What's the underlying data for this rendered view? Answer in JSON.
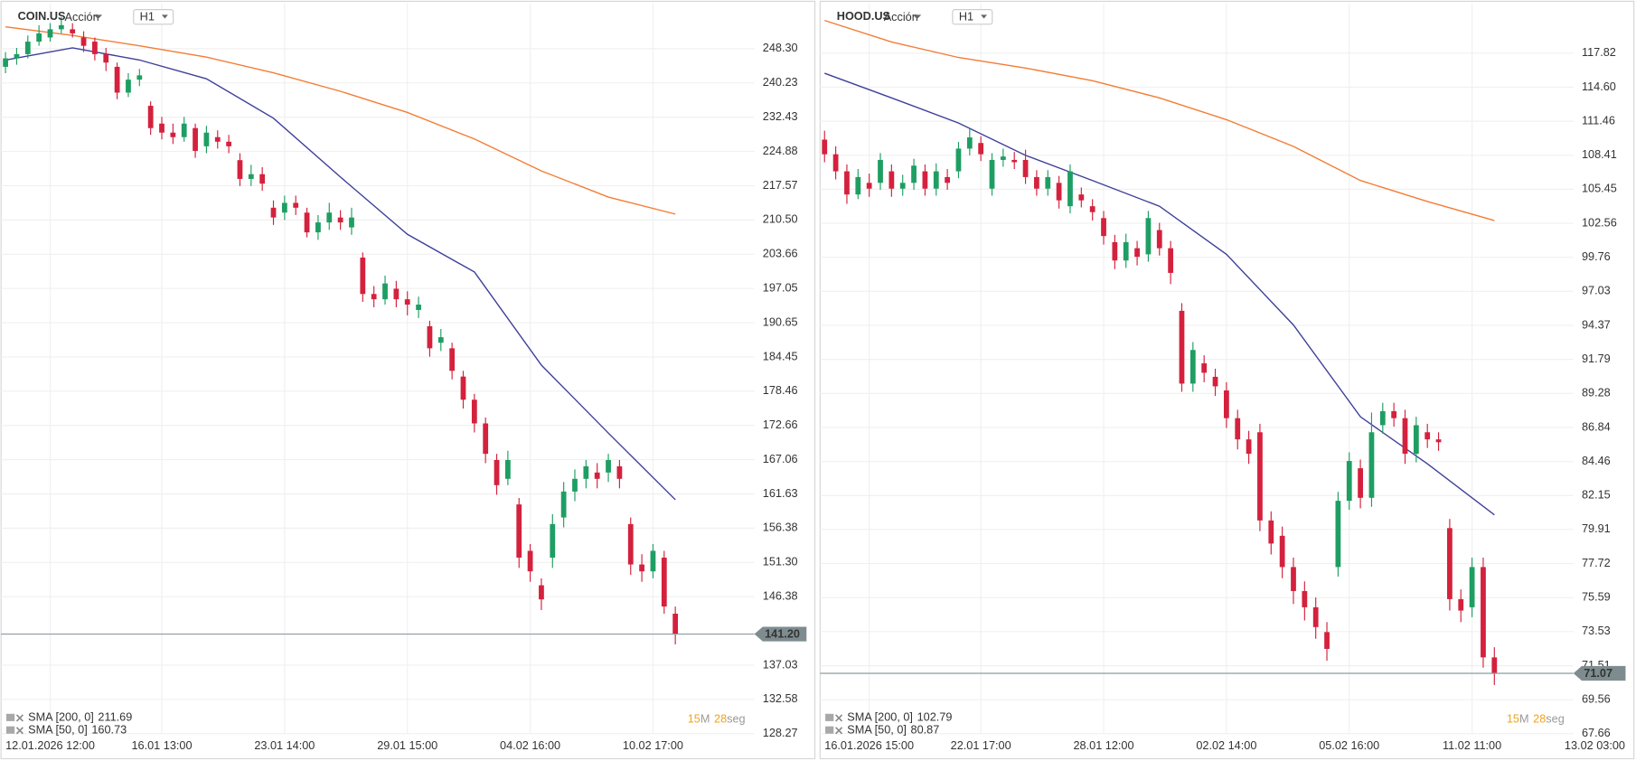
{
  "chart_data": [
    {
      "type": "candlestick",
      "symbol": "COIN.US",
      "asset_type": "Acción",
      "timeframe": "H1",
      "x": [
        0,
        1,
        2,
        3,
        4,
        5,
        6,
        7,
        8,
        9,
        10,
        11,
        12,
        13,
        14,
        15,
        16,
        17,
        18,
        19,
        20,
        21,
        22,
        23,
        24,
        25,
        26,
        27,
        28,
        29,
        30,
        31,
        32,
        33,
        34,
        35,
        36,
        37,
        38,
        39,
        40,
        41,
        42,
        43,
        44,
        45,
        46,
        47,
        48,
        49,
        50,
        51,
        52,
        53,
        54,
        55,
        56,
        57,
        58,
        59,
        60
      ],
      "xlim": [
        -0.4,
        72.5
      ],
      "xticks": [
        {
          "value": 4,
          "label": "12.01.2026 12:00"
        },
        {
          "value": 14,
          "label": "16.01 13:00"
        },
        {
          "value": 25,
          "label": "23.01 14:00"
        },
        {
          "value": 36,
          "label": "29.01 15:00"
        },
        {
          "value": 47,
          "label": "04.02 16:00"
        },
        {
          "value": 58,
          "label": "10.02 17:00"
        }
      ],
      "ylim": [
        128.27,
        259.4
      ],
      "log_scale": true,
      "grid": true,
      "yticks": [
        {
          "value": 248.3,
          "label": "248.30"
        },
        240.23,
        232.43,
        224.88,
        217.57,
        {
          "value": 210.5,
          "label": "210.50"
        },
        203.66,
        197.05,
        190.65,
        184.45,
        178.46,
        172.66,
        167.06,
        161.63,
        156.38,
        {
          "value": 151.3,
          "label": "151.30"
        },
        146.38,
        137.03,
        132.58,
        128.27
      ],
      "open": [
        244,
        246,
        247,
        250,
        251,
        253,
        253,
        251,
        250,
        247,
        244,
        238,
        241,
        235,
        231,
        229,
        228,
        230,
        226,
        228,
        227,
        223,
        219,
        220,
        213,
        212,
        214,
        212,
        208,
        210,
        211,
        209,
        203,
        196,
        195,
        197,
        195,
        193,
        190,
        187,
        186,
        181,
        177,
        173,
        167,
        164,
        160,
        153,
        148,
        152,
        158,
        162,
        164,
        165,
        165,
        166,
        157,
        151,
        150,
        152,
        144
      ],
      "high": [
        247.5,
        248.5,
        251.5,
        254,
        254.5,
        256,
        254.5,
        252.5,
        251,
        248.5,
        245,
        242.5,
        243.5,
        236,
        232.5,
        231,
        232.5,
        231,
        230.5,
        229.5,
        228.5,
        224.5,
        222,
        221.5,
        214.5,
        215.5,
        215.5,
        213,
        211.5,
        214,
        212.5,
        213,
        204,
        197.5,
        199.5,
        198.5,
        196.5,
        195.5,
        191,
        189.5,
        187,
        182,
        178,
        174,
        168,
        168.5,
        161,
        154,
        149,
        158.5,
        163.5,
        165.5,
        167,
        166.5,
        168,
        167,
        158,
        152.5,
        154,
        153,
        145
      ],
      "low": [
        242.5,
        244.5,
        246,
        249,
        250,
        252,
        251,
        247.5,
        245.5,
        243,
        236.5,
        237,
        239.5,
        228.5,
        227.5,
        226.5,
        227,
        223.5,
        224.5,
        225.5,
        224.5,
        217.5,
        217.5,
        216.5,
        209.5,
        210.5,
        211.5,
        207,
        206.5,
        208.5,
        208.5,
        207.5,
        194.5,
        193.5,
        194,
        193.5,
        192,
        191.5,
        184.5,
        185.5,
        180.5,
        175.5,
        171.5,
        166.5,
        161.5,
        163,
        150.5,
        148.5,
        144.5,
        150.5,
        156.5,
        160.5,
        162.5,
        162.5,
        163.5,
        162.5,
        149.5,
        148.5,
        149,
        144,
        139.8
      ],
      "close": [
        246,
        247,
        250,
        252,
        253,
        254,
        252,
        249,
        247,
        245,
        238,
        241,
        242,
        230,
        229,
        228,
        231,
        225,
        229,
        227,
        226,
        219,
        220,
        218,
        211,
        214,
        213,
        208,
        210,
        212,
        210,
        211,
        196,
        195,
        198,
        195,
        194,
        194,
        186,
        188,
        182,
        177,
        173,
        168,
        163,
        167,
        152,
        150,
        146,
        157,
        162,
        164,
        166,
        164,
        167,
        164,
        151,
        150,
        153,
        145,
        141.2
      ],
      "up_color": "#1e9e63",
      "down_color": "#d4213d",
      "series": [
        {
          "name": "SMA [200, 0]",
          "color": "#f47c34",
          "last": 211.69,
          "x": [
            0,
            6,
            12,
            18,
            24,
            30,
            36,
            42,
            48,
            54,
            60
          ],
          "values": [
            253.6,
            251.5,
            249.0,
            246.3,
            242.6,
            238.3,
            233.5,
            227.6,
            220.7,
            215.2,
            211.69
          ]
        },
        {
          "name": "SMA [50, 0]",
          "color": "#3d3f99",
          "last": 160.73,
          "x": [
            0,
            6,
            12,
            18,
            24,
            30,
            36,
            42,
            48,
            54,
            60
          ],
          "values": [
            245.6,
            248.5,
            245.6,
            241.2,
            232.2,
            219.4,
            207.6,
            200.2,
            183.0,
            171.4,
            160.73
          ]
        }
      ],
      "last_price": {
        "value": 141.2,
        "label": "141.20"
      },
      "countdown": {
        "minutes": 15,
        "minutes_unit": "M",
        "seconds": 28,
        "seconds_unit": "seg"
      }
    },
    {
      "type": "candlestick",
      "symbol": "HOOD.US",
      "asset_type": "Acción",
      "timeframe": "H1",
      "x": [
        0,
        1,
        2,
        3,
        4,
        5,
        6,
        7,
        8,
        9,
        10,
        11,
        12,
        13,
        14,
        15,
        16,
        17,
        18,
        19,
        20,
        21,
        22,
        23,
        24,
        25,
        26,
        27,
        28,
        29,
        30,
        31,
        32,
        33,
        34,
        35,
        36,
        37,
        38,
        39,
        40,
        41,
        42,
        43,
        44,
        45,
        46,
        47,
        48,
        49,
        50,
        51,
        52,
        53,
        54,
        55,
        56,
        57,
        58,
        59,
        60
      ],
      "xlim": [
        -0.4,
        72.5
      ],
      "xticks": [
        {
          "value": 4,
          "label": "16.01.2026 15:00"
        },
        {
          "value": 14,
          "label": "22.01 17:00"
        },
        {
          "value": 25,
          "label": "28.01 12:00"
        },
        {
          "value": 36,
          "label": "02.02 14:00"
        },
        {
          "value": 47,
          "label": "05.02 16:00"
        },
        {
          "value": 58,
          "label": "11.02 11:00"
        },
        {
          "value": 69,
          "label": "13.02 03:00"
        }
      ],
      "ylim": [
        67.66,
        122.7
      ],
      "log_scale": true,
      "grid": true,
      "yticks": [
        117.82,
        {
          "value": 114.6,
          "label": "114.60"
        },
        111.46,
        108.41,
        105.45,
        102.56,
        99.76,
        97.03,
        94.37,
        91.79,
        89.28,
        86.84,
        84.46,
        82.15,
        79.91,
        77.72,
        75.59,
        73.53,
        71.51,
        69.56,
        67.66
      ],
      "open": [
        109.8,
        108.5,
        107,
        105,
        106,
        106,
        107,
        105.5,
        106,
        107,
        105.5,
        106.5,
        107,
        109,
        109.5,
        105.5,
        108,
        108,
        108,
        106.5,
        105.5,
        106,
        104,
        105,
        104,
        103,
        101,
        99.5,
        100.5,
        100,
        102,
        100.5,
        95.5,
        90,
        91.5,
        90.5,
        89.5,
        87.5,
        86,
        86.5,
        80.5,
        79.5,
        77.5,
        76,
        75,
        73.5,
        77.5,
        81.8,
        84,
        82,
        87,
        88,
        87.5,
        85,
        86.5,
        86,
        80,
        75.5,
        75,
        77.5,
        72
      ],
      "high": [
        110.6,
        109.2,
        107.6,
        107.2,
        106.8,
        108.6,
        107.6,
        106.7,
        108.1,
        107.6,
        107.7,
        107.2,
        109.6,
        110.8,
        110.1,
        108.6,
        109,
        108.7,
        108.9,
        107.1,
        107.1,
        106.6,
        107.6,
        105.6,
        104.6,
        103.6,
        101.6,
        101.7,
        101.1,
        103.6,
        102.6,
        101.1,
        96.1,
        93.1,
        92.1,
        91.1,
        90.1,
        88.1,
        86.6,
        87.1,
        81.1,
        80.1,
        78.1,
        76.6,
        75.6,
        74.1,
        82.4,
        85.1,
        84.6,
        87.9,
        88.6,
        88.6,
        88.1,
        87.6,
        87.1,
        86.5,
        80.6,
        76.1,
        78.1,
        78.1,
        72.6
      ],
      "low": [
        107.8,
        106.3,
        104.2,
        104.6,
        104.8,
        105.4,
        104.8,
        104.9,
        105.4,
        104.9,
        104.9,
        105.4,
        106.4,
        108.4,
        107.9,
        104.9,
        107.4,
        107.2,
        105.9,
        104.9,
        104.9,
        103.8,
        103.4,
        103.9,
        102.8,
        100.8,
        98.8,
        98.9,
        99.1,
        99.4,
        99.9,
        97.6,
        89.4,
        89.4,
        90.1,
        89.1,
        86.8,
        85.3,
        84.3,
        79.8,
        78.3,
        76.8,
        75.2,
        74.2,
        73.1,
        71.8,
        76.9,
        81.2,
        81.3,
        81.4,
        86.4,
        86.9,
        84.3,
        84.4,
        85.4,
        85.2,
        74.8,
        74.1,
        74.4,
        71.4,
        70.4
      ],
      "close": [
        108.5,
        107,
        105,
        106.5,
        105.5,
        108,
        105.5,
        106,
        107.5,
        105.5,
        107,
        106,
        109,
        110,
        108.5,
        108,
        108.3,
        107.8,
        106.5,
        105.5,
        106.5,
        104.5,
        107,
        104.5,
        103.5,
        101.5,
        99.5,
        101,
        99.8,
        103,
        100.5,
        98.5,
        90,
        92.5,
        90.8,
        89.8,
        87.5,
        86,
        85,
        80.5,
        79,
        77.5,
        76,
        75,
        73.8,
        72.5,
        81.8,
        84.5,
        82,
        86.5,
        88,
        87.5,
        85,
        87,
        86,
        85.8,
        75.5,
        74.8,
        77.5,
        72,
        71.07
      ],
      "up_color": "#1e9e63",
      "down_color": "#d4213d",
      "series": [
        {
          "name": "SMA [200, 0]",
          "color": "#f47c34",
          "last": 102.79,
          "x": [
            0,
            6,
            12,
            18,
            24,
            30,
            36,
            42,
            48,
            54,
            60
          ],
          "values": [
            121.0,
            118.9,
            117.4,
            116.4,
            115.2,
            113.6,
            111.6,
            109.2,
            106.2,
            104.4,
            102.79
          ]
        },
        {
          "name": "SMA [50, 0]",
          "color": "#3d3f99",
          "last": 80.87,
          "x": [
            0,
            6,
            12,
            18,
            24,
            30,
            36,
            42,
            48,
            54,
            60
          ],
          "values": [
            115.9,
            113.6,
            111.3,
            108.4,
            106.2,
            104.0,
            100.0,
            94.4,
            87.6,
            84.3,
            80.87
          ]
        }
      ],
      "last_price": 71.07,
      "countdown": {
        "minutes": 15,
        "minutes_unit": "M",
        "seconds": 28,
        "seconds_unit": "seg"
      }
    }
  ]
}
